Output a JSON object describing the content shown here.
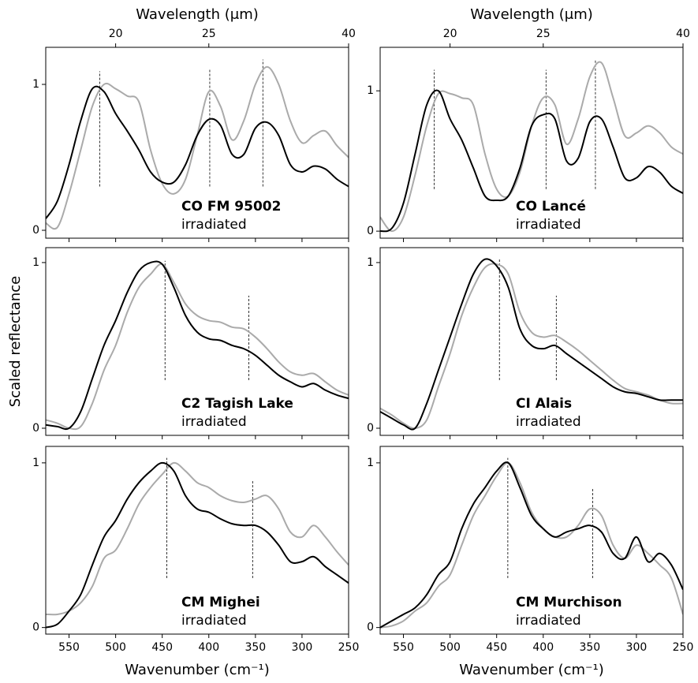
{
  "chart_data": [
    {
      "type": "line",
      "x2label": "Wavelength (μm)",
      "x2ticks": [
        20,
        25,
        40
      ],
      "x": [
        575,
        562.5,
        550,
        537.5,
        525,
        512.5,
        500,
        487.5,
        475,
        462.5,
        450,
        437.5,
        425,
        412.5,
        400,
        387.5,
        375,
        362.5,
        350,
        337.5,
        325,
        312.5,
        300,
        287.5,
        275,
        262.5,
        250
      ],
      "xlim": [
        575,
        250
      ],
      "xticks": [
        550,
        500,
        450,
        400,
        350,
        300,
        250
      ],
      "ylim": [
        -0.054,
        1.254
      ],
      "yticks": [
        0,
        1
      ],
      "series": [
        {
          "name": "CO FM 95002",
          "color": "#000000",
          "values": [
            0.08,
            0.2,
            0.45,
            0.75,
            0.97,
            0.95,
            0.8,
            0.68,
            0.55,
            0.4,
            0.33,
            0.33,
            0.45,
            0.65,
            0.76,
            0.72,
            0.52,
            0.52,
            0.7,
            0.74,
            0.65,
            0.45,
            0.4,
            0.44,
            0.42,
            0.35,
            0.3
          ]
        },
        {
          "name": "irradiated",
          "color": "#aaaaaa",
          "values": [
            0.05,
            0.02,
            0.25,
            0.55,
            0.85,
            1.0,
            0.97,
            0.92,
            0.88,
            0.55,
            0.32,
            0.25,
            0.35,
            0.65,
            0.95,
            0.85,
            0.62,
            0.75,
            1.0,
            1.12,
            1.0,
            0.75,
            0.6,
            0.65,
            0.68,
            0.58,
            0.5
          ]
        }
      ],
      "vlines": [
        {
          "x": 517,
          "ymin": 0.3,
          "ymax": 1.09
        },
        {
          "x": 399,
          "ymin": 0.3,
          "ymax": 1.1
        },
        {
          "x": 342,
          "ymin": 0.3,
          "ymax": 1.17
        }
      ]
    },
    {
      "type": "line",
      "x2label": "Wavelength (μm)",
      "x2ticks": [
        20,
        25,
        40
      ],
      "x": [
        575,
        562.5,
        550,
        537.5,
        525,
        512.5,
        500,
        487.5,
        475,
        462.5,
        450,
        437.5,
        425,
        412.5,
        400,
        387.5,
        375,
        362.5,
        350,
        337.5,
        325,
        312.5,
        300,
        287.5,
        275,
        262.5,
        250
      ],
      "xlim": [
        575,
        250
      ],
      "xticks": [
        550,
        500,
        450,
        400,
        350,
        300,
        250
      ],
      "ylim": [
        -0.05,
        1.31
      ],
      "yticks": [
        0,
        1
      ],
      "series": [
        {
          "name": "CO Lancé",
          "color": "#000000",
          "values": [
            0.0,
            0.02,
            0.2,
            0.55,
            0.9,
            1.0,
            0.8,
            0.65,
            0.45,
            0.25,
            0.22,
            0.25,
            0.45,
            0.75,
            0.83,
            0.8,
            0.5,
            0.52,
            0.78,
            0.8,
            0.6,
            0.38,
            0.38,
            0.46,
            0.42,
            0.32,
            0.27
          ]
        },
        {
          "name": "irradiated",
          "color": "#aaaaaa",
          "values": [
            0.1,
            0.0,
            0.1,
            0.4,
            0.75,
            0.98,
            0.98,
            0.95,
            0.9,
            0.55,
            0.3,
            0.25,
            0.42,
            0.75,
            0.95,
            0.9,
            0.62,
            0.8,
            1.1,
            1.2,
            0.95,
            0.68,
            0.7,
            0.75,
            0.7,
            0.6,
            0.55
          ]
        }
      ],
      "vlines": [
        {
          "x": 517,
          "ymin": 0.3,
          "ymax": 1.15
        },
        {
          "x": 397,
          "ymin": 0.3,
          "ymax": 1.15
        },
        {
          "x": 344,
          "ymin": 0.3,
          "ymax": 1.22
        }
      ]
    },
    {
      "type": "line",
      "ylabel": "Scaled reflectance",
      "x": [
        575,
        562.5,
        550,
        537.5,
        525,
        512.5,
        500,
        487.5,
        475,
        462.5,
        450,
        437.5,
        425,
        412.5,
        400,
        387.5,
        375,
        362.5,
        350,
        337.5,
        325,
        312.5,
        300,
        287.5,
        275,
        262.5,
        250
      ],
      "xlim": [
        575,
        250
      ],
      "xticks": [
        550,
        500,
        450,
        400,
        350,
        300,
        250
      ],
      "ylim": [
        -0.043,
        1.09
      ],
      "yticks": [
        0,
        1
      ],
      "series": [
        {
          "name": "C2 Tagish Lake",
          "color": "#000000",
          "values": [
            0.02,
            0.01,
            0.0,
            0.1,
            0.3,
            0.5,
            0.65,
            0.82,
            0.95,
            1.0,
            0.99,
            0.85,
            0.68,
            0.58,
            0.54,
            0.53,
            0.5,
            0.48,
            0.44,
            0.38,
            0.32,
            0.28,
            0.25,
            0.27,
            0.23,
            0.2,
            0.18
          ]
        },
        {
          "name": "irradiated",
          "color": "#aaaaaa",
          "values": [
            0.05,
            0.03,
            0.0,
            0.01,
            0.15,
            0.35,
            0.5,
            0.7,
            0.85,
            0.93,
            0.99,
            0.88,
            0.75,
            0.68,
            0.65,
            0.64,
            0.61,
            0.6,
            0.55,
            0.48,
            0.4,
            0.34,
            0.32,
            0.33,
            0.28,
            0.23,
            0.2
          ]
        }
      ],
      "vlines": [
        {
          "x": 447,
          "ymin": 0.29,
          "ymax": 1.01
        },
        {
          "x": 357,
          "ymin": 0.29,
          "ymax": 0.8
        }
      ]
    },
    {
      "type": "line",
      "x": [
        575,
        562.5,
        550,
        537.5,
        525,
        512.5,
        500,
        487.5,
        475,
        462.5,
        450,
        437.5,
        425,
        412.5,
        400,
        387.5,
        375,
        362.5,
        350,
        337.5,
        325,
        312.5,
        300,
        287.5,
        275,
        262.5,
        250
      ],
      "xlim": [
        575,
        250
      ],
      "xticks": [
        550,
        500,
        450,
        400,
        350,
        300,
        250
      ],
      "ylim": [
        -0.043,
        1.09
      ],
      "yticks": [
        0,
        1
      ],
      "series": [
        {
          "name": "CI Alais",
          "color": "#000000",
          "values": [
            0.1,
            0.06,
            0.02,
            0.0,
            0.15,
            0.35,
            0.55,
            0.75,
            0.93,
            1.02,
            0.98,
            0.85,
            0.6,
            0.5,
            0.48,
            0.5,
            0.45,
            0.4,
            0.35,
            0.3,
            0.25,
            0.22,
            0.21,
            0.19,
            0.17,
            0.17,
            0.17
          ]
        },
        {
          "name": "irradiated",
          "color": "#aaaaaa",
          "values": [
            0.12,
            0.08,
            0.03,
            0.0,
            0.05,
            0.25,
            0.45,
            0.68,
            0.85,
            0.97,
            0.99,
            0.93,
            0.7,
            0.58,
            0.55,
            0.56,
            0.52,
            0.47,
            0.41,
            0.35,
            0.29,
            0.24,
            0.22,
            0.2,
            0.17,
            0.15,
            0.15
          ]
        }
      ],
      "vlines": [
        {
          "x": 447,
          "ymin": 0.29,
          "ymax": 1.02
        },
        {
          "x": 386,
          "ymin": 0.29,
          "ymax": 0.8
        }
      ]
    },
    {
      "type": "line",
      "xlabel": "Wavenumber (cm⁻¹)",
      "x": [
        575,
        562.5,
        550,
        537.5,
        525,
        512.5,
        500,
        487.5,
        475,
        462.5,
        450,
        437.5,
        425,
        412.5,
        400,
        387.5,
        375,
        362.5,
        350,
        337.5,
        325,
        312.5,
        300,
        287.5,
        275,
        262.5,
        250
      ],
      "xlim": [
        575,
        250
      ],
      "xticks": [
        550,
        500,
        450,
        400,
        350,
        300,
        250
      ],
      "ylim": [
        -0.04,
        1.1
      ],
      "yticks": [
        0,
        1
      ],
      "series": [
        {
          "name": "CM Mighei",
          "color": "#000000",
          "values": [
            0.0,
            0.02,
            0.1,
            0.2,
            0.38,
            0.55,
            0.65,
            0.78,
            0.88,
            0.95,
            1.0,
            0.95,
            0.8,
            0.72,
            0.7,
            0.66,
            0.63,
            0.62,
            0.62,
            0.58,
            0.5,
            0.4,
            0.4,
            0.43,
            0.37,
            0.32,
            0.27
          ]
        },
        {
          "name": "irradiated",
          "color": "#aaaaaa",
          "values": [
            0.08,
            0.08,
            0.1,
            0.15,
            0.25,
            0.42,
            0.47,
            0.6,
            0.75,
            0.85,
            0.93,
            1.0,
            0.95,
            0.88,
            0.85,
            0.8,
            0.77,
            0.76,
            0.78,
            0.8,
            0.72,
            0.58,
            0.55,
            0.62,
            0.55,
            0.46,
            0.38
          ]
        }
      ],
      "vlines": [
        {
          "x": 445,
          "ymin": 0.3,
          "ymax": 1.03
        },
        {
          "x": 353,
          "ymin": 0.3,
          "ymax": 0.89
        }
      ]
    },
    {
      "type": "line",
      "xlabel": "Wavenumber (cm⁻¹)",
      "x": [
        575,
        562.5,
        550,
        537.5,
        525,
        512.5,
        500,
        487.5,
        475,
        462.5,
        450,
        437.5,
        425,
        412.5,
        400,
        387.5,
        375,
        362.5,
        350,
        337.5,
        325,
        312.5,
        300,
        287.5,
        275,
        262.5,
        250
      ],
      "xlim": [
        575,
        250
      ],
      "xticks": [
        550,
        500,
        450,
        400,
        350,
        300,
        250
      ],
      "ylim": [
        -0.04,
        1.1
      ],
      "yticks": [
        0,
        1
      ],
      "series": [
        {
          "name": "CM Murchison",
          "color": "#000000",
          "values": [
            0.0,
            0.04,
            0.08,
            0.12,
            0.2,
            0.32,
            0.4,
            0.6,
            0.75,
            0.85,
            0.95,
            1.0,
            0.85,
            0.68,
            0.6,
            0.55,
            0.58,
            0.6,
            0.62,
            0.58,
            0.45,
            0.42,
            0.55,
            0.4,
            0.45,
            0.38,
            0.23
          ]
        },
        {
          "name": "irradiated",
          "color": "#aaaaaa",
          "values": [
            0.0,
            0.01,
            0.04,
            0.1,
            0.15,
            0.25,
            0.32,
            0.5,
            0.68,
            0.8,
            0.92,
            1.0,
            0.88,
            0.7,
            0.6,
            0.55,
            0.55,
            0.62,
            0.72,
            0.68,
            0.5,
            0.42,
            0.5,
            0.45,
            0.38,
            0.3,
            0.08
          ]
        }
      ],
      "vlines": [
        {
          "x": 438,
          "ymin": 0.3,
          "ymax": 1.03
        },
        {
          "x": 347,
          "ymin": 0.3,
          "ymax": 0.85
        }
      ]
    }
  ]
}
